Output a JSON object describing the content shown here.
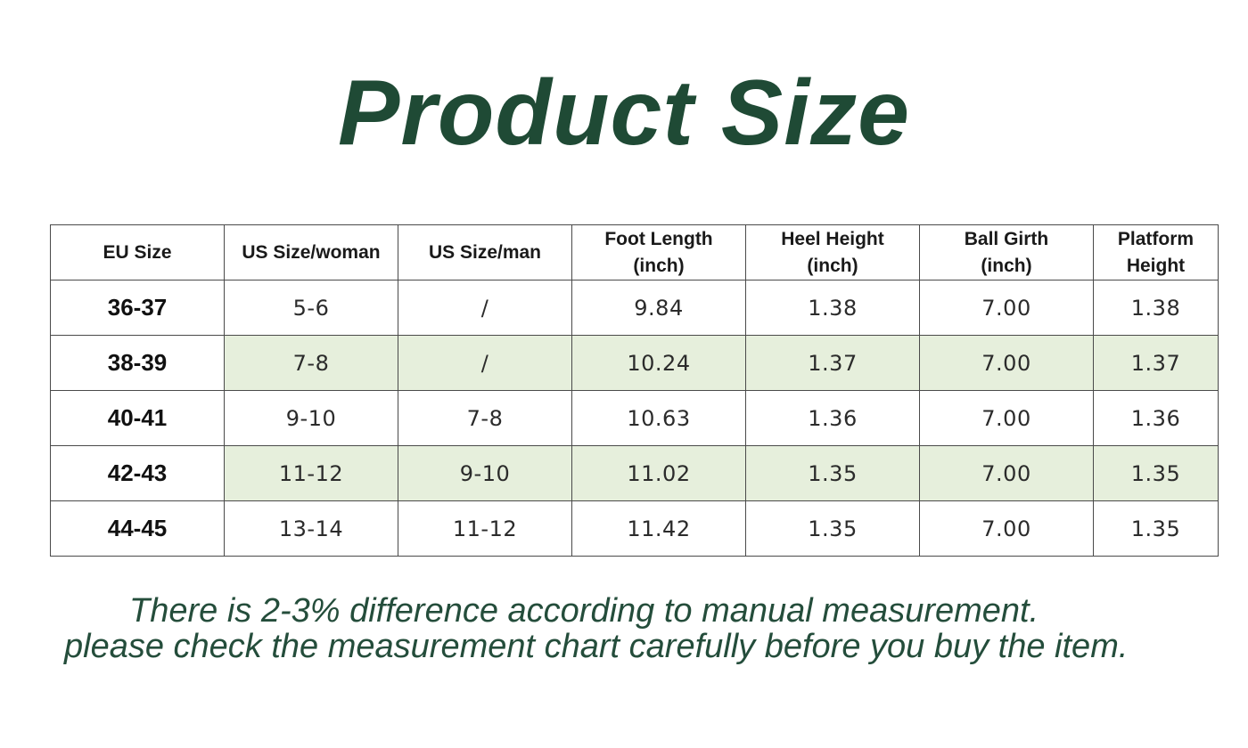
{
  "title": "Product Size",
  "table": {
    "headers": [
      "EU Size",
      "US Size/woman",
      "US Size/man",
      "Foot Length\n(inch)",
      "Heel Height\n(inch)",
      "Ball Girth\n(inch)",
      "Platform\nHeight"
    ],
    "rows": [
      [
        "36-37",
        "5-6",
        "/",
        "9.84",
        "1.38",
        "7.00",
        "1.38"
      ],
      [
        "38-39",
        "7-8",
        "/",
        "10.24",
        "1.37",
        "7.00",
        "1.37"
      ],
      [
        "40-41",
        "9-10",
        "7-8",
        "10.63",
        "1.36",
        "7.00",
        "1.36"
      ],
      [
        "42-43",
        "11-12",
        "9-10",
        "11.02",
        "1.35",
        "7.00",
        "1.35"
      ],
      [
        "44-45",
        "13-14",
        "11-12",
        "11.42",
        "1.35",
        "7.00",
        "1.35"
      ]
    ]
  },
  "notes": [
    "There is 2-3% difference according to manual measurement.",
    "please check the measurement chart carefully before you buy the item."
  ],
  "colors": {
    "title": "#1f4a35",
    "note_text": "#244d3b",
    "shaded_row": "#e6efdc",
    "border": "#4a4a4a"
  }
}
